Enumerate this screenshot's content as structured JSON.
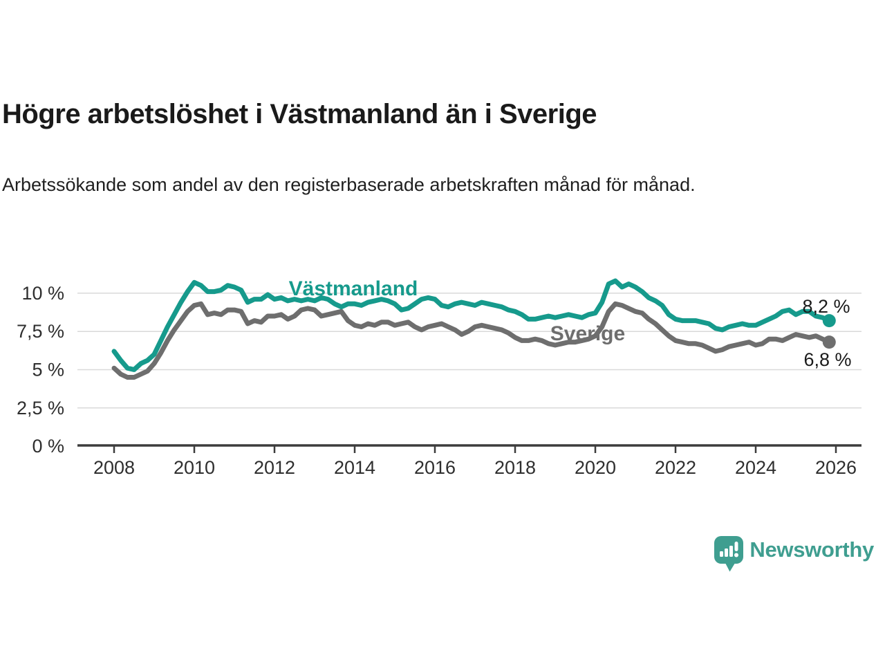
{
  "header": {
    "title": "Högre arbetslöshet i Västmanland än i Sverige",
    "subtitle": "Arbetssökande som andel av den registerbaserade arbetskraften månad för månad."
  },
  "chart_data": {
    "type": "line",
    "title": "Högre arbetslöshet i Västmanland än i Sverige",
    "subtitle": "Arbetssökande som andel av den registerbaserade arbetskraften månad för månad.",
    "xlabel": "",
    "ylabel": "",
    "grid": "horizontal",
    "xlim": [
      2007.1,
      2026.6
    ],
    "ylim": [
      0,
      11
    ],
    "x_unit": "year (monthly series, values estimated at 2-month steps)",
    "x_start": 2008.0,
    "x_step_months": 2,
    "x_tick_labels": [
      "2008",
      "2010",
      "2012",
      "2014",
      "2016",
      "2018",
      "2020",
      "2022",
      "2024",
      "2026"
    ],
    "x_tick_years": [
      2008,
      2010,
      2012,
      2014,
      2016,
      2018,
      2020,
      2022,
      2024,
      2026
    ],
    "y_tick_labels": [
      "0 %",
      "2,5 %",
      "5 %",
      "7,5 %",
      "10 %"
    ],
    "y_tick_values": [
      0,
      2.5,
      5,
      7.5,
      10
    ],
    "series": [
      {
        "name": "Västmanland",
        "color": "#169a8c",
        "end_label": "8,2 %",
        "end_value": 8.2,
        "values": [
          6.2,
          5.6,
          5.1,
          5.0,
          5.4,
          5.6,
          6.0,
          6.9,
          7.8,
          8.6,
          9.4,
          10.1,
          10.7,
          10.5,
          10.1,
          10.1,
          10.2,
          10.5,
          10.4,
          10.2,
          9.4,
          9.6,
          9.6,
          9.9,
          9.6,
          9.7,
          9.5,
          9.6,
          9.5,
          9.6,
          9.5,
          9.7,
          9.6,
          9.3,
          9.1,
          9.3,
          9.3,
          9.2,
          9.4,
          9.5,
          9.6,
          9.5,
          9.3,
          8.9,
          9.0,
          9.3,
          9.6,
          9.7,
          9.6,
          9.2,
          9.1,
          9.3,
          9.4,
          9.3,
          9.2,
          9.4,
          9.3,
          9.2,
          9.1,
          8.9,
          8.8,
          8.6,
          8.3,
          8.3,
          8.4,
          8.5,
          8.4,
          8.5,
          8.6,
          8.5,
          8.4,
          8.6,
          8.7,
          9.4,
          10.6,
          10.8,
          10.4,
          10.6,
          10.4,
          10.1,
          9.7,
          9.5,
          9.2,
          8.6,
          8.3,
          8.2,
          8.2,
          8.2,
          8.1,
          8.0,
          7.7,
          7.6,
          7.8,
          7.9,
          8.0,
          7.9,
          7.9,
          8.1,
          8.3,
          8.5,
          8.8,
          8.9,
          8.6,
          8.8,
          8.8,
          8.5,
          8.4,
          8.2
        ]
      },
      {
        "name": "Sverige",
        "color": "#6e6e6e",
        "end_label": "6,8 %",
        "end_value": 6.8,
        "values": [
          5.1,
          4.7,
          4.5,
          4.5,
          4.7,
          4.9,
          5.4,
          6.1,
          6.9,
          7.6,
          8.2,
          8.8,
          9.2,
          9.3,
          8.6,
          8.7,
          8.6,
          8.9,
          8.9,
          8.8,
          8.0,
          8.2,
          8.1,
          8.5,
          8.5,
          8.6,
          8.3,
          8.5,
          8.9,
          9.0,
          8.9,
          8.5,
          8.6,
          8.7,
          8.8,
          8.2,
          7.9,
          7.8,
          8.0,
          7.9,
          8.1,
          8.1,
          7.9,
          8.0,
          8.1,
          7.8,
          7.6,
          7.8,
          7.9,
          8.0,
          7.8,
          7.6,
          7.3,
          7.5,
          7.8,
          7.9,
          7.8,
          7.7,
          7.6,
          7.4,
          7.1,
          6.9,
          6.9,
          7.0,
          6.9,
          6.7,
          6.6,
          6.7,
          6.8,
          6.8,
          6.9,
          7.0,
          7.2,
          7.8,
          8.8,
          9.3,
          9.2,
          9.0,
          8.8,
          8.7,
          8.3,
          8.0,
          7.6,
          7.2,
          6.9,
          6.8,
          6.7,
          6.7,
          6.6,
          6.4,
          6.2,
          6.3,
          6.5,
          6.6,
          6.7,
          6.8,
          6.6,
          6.7,
          7.0,
          7.0,
          6.9,
          7.1,
          7.3,
          7.2,
          7.1,
          7.2,
          7.0,
          6.8
        ]
      }
    ],
    "legend_position": "inline-labels-on-lines"
  },
  "branding": {
    "logo_text": "Newsworthy",
    "logo_color": "#3f9e90",
    "logo_icon": "newsworthy-speech-bubble-bar-chart-icon"
  },
  "colors": {
    "accent_teal": "#169a8c",
    "series_gray": "#6e6e6e",
    "gridline": "#d9d9d9",
    "axis": "#3c3c3c",
    "text": "#1a1a1a"
  }
}
